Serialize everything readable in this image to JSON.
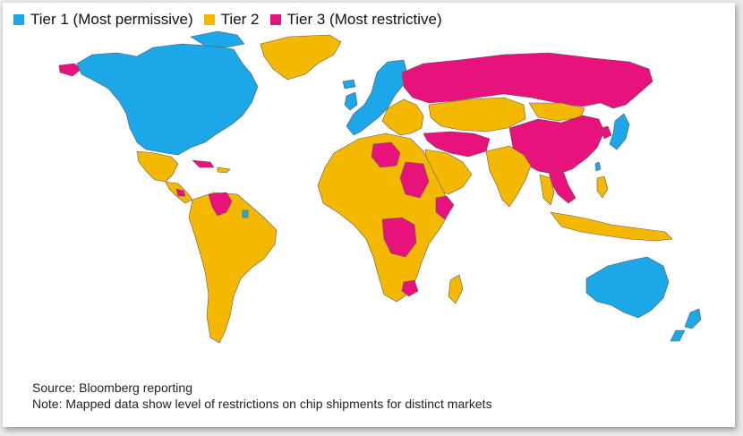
{
  "legend": [
    {
      "label": "Tier 1 (Most permissive)",
      "color": "#1ba7e8"
    },
    {
      "label": "Tier 2",
      "color": "#f5b800"
    },
    {
      "label": "Tier 3 (Most restrictive)",
      "color": "#e8127c"
    }
  ],
  "footer": {
    "source": "Source: Bloomberg reporting",
    "note": "Note: Mapped data show level of restrictions on chip shipments for distinct markets"
  },
  "colors": {
    "tier1": "#1ba7e8",
    "tier2": "#f5b800",
    "tier3": "#e8127c",
    "border": "#5b5b5b"
  }
}
